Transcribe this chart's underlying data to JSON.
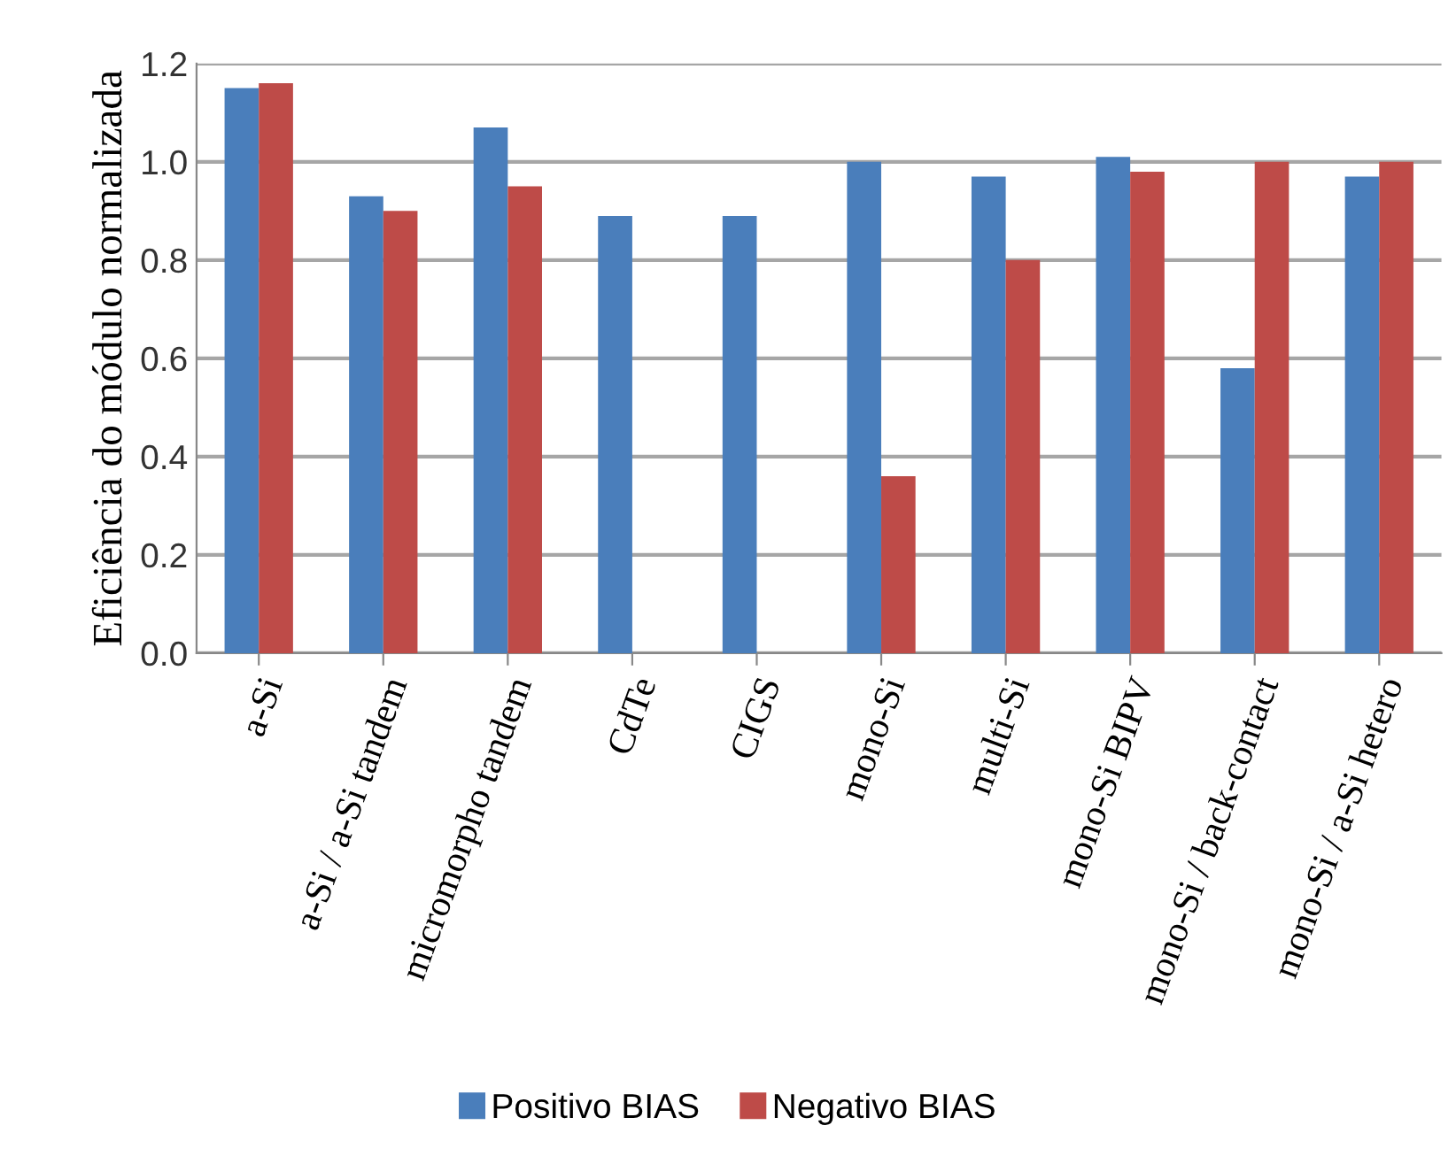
{
  "chart_data": {
    "type": "bar",
    "ylabel": "Eficiência do módulo normalizada",
    "categories": [
      "a-Si",
      "a-Si / a-Si tandem",
      "micromorpho tandem",
      "CdTe",
      "CIGS",
      "mono-Si",
      "multi-Si",
      "mono-Si BIPV",
      "mono-Si / back-contact",
      "mono-Si / a-Si hetero"
    ],
    "series": [
      {
        "name": "Positivo BIAS",
        "color": "#4a7ebb",
        "values": [
          1.15,
          0.93,
          1.07,
          0.89,
          0.89,
          1.0,
          0.97,
          1.01,
          0.58,
          0.97
        ]
      },
      {
        "name": "Negativo BIAS",
        "color": "#be4b48",
        "values": [
          1.16,
          0.9,
          0.95,
          null,
          null,
          0.36,
          0.8,
          0.98,
          1.0,
          1.0
        ]
      }
    ],
    "ylim": [
      0,
      1.2
    ],
    "yticks": [
      {
        "value": 0,
        "label": "0.0"
      },
      0.2,
      0.4,
      0.6,
      0.8,
      {
        "value": 1,
        "label": "1.0"
      },
      1.2
    ],
    "grid": "y",
    "legend": "bottom"
  }
}
